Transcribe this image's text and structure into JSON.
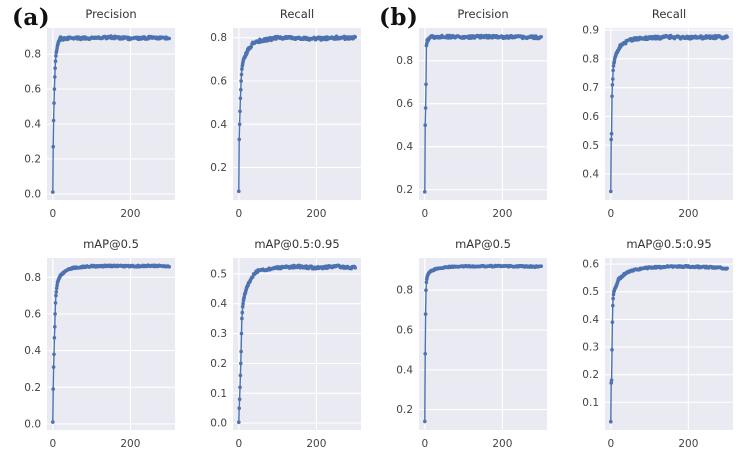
{
  "figure": {
    "kind": "training-metric-curves",
    "background": "#ffffff"
  },
  "panels": [
    {
      "label": "(a)"
    },
    {
      "label": "(b)"
    }
  ],
  "style": {
    "plot_bg": "#eaeaf2",
    "grid_color": "#ffffff",
    "series_color": "#4c72b0",
    "tick_color": "#444444",
    "title_color": "#333333"
  },
  "chart_data": [
    {
      "panel": "a",
      "type": "line",
      "markers": true,
      "title": "Precision",
      "xlabel": "",
      "ylabel": "",
      "legend": null,
      "grid": true,
      "xlim": [
        -15,
        315
      ],
      "ylim": [
        -0.035,
        0.95
      ],
      "xticks": [
        0,
        200
      ],
      "yticks": [
        0.0,
        0.2,
        0.4,
        0.6,
        0.8
      ],
      "x": [
        0,
        1,
        2,
        3,
        4,
        5,
        6,
        7,
        8,
        9,
        10,
        12,
        15,
        20,
        25,
        30,
        40,
        50,
        70,
        100,
        150,
        200,
        250,
        300
      ],
      "y": [
        0.01,
        0.27,
        0.42,
        0.52,
        0.6,
        0.67,
        0.72,
        0.76,
        0.79,
        0.81,
        0.82,
        0.85,
        0.87,
        0.895,
        0.885,
        0.89,
        0.893,
        0.895,
        0.89,
        0.893,
        0.897,
        0.89,
        0.895,
        0.89
      ],
      "noise": 0.007
    },
    {
      "panel": "a",
      "type": "line",
      "markers": true,
      "title": "Recall",
      "xlabel": "",
      "ylabel": "",
      "legend": null,
      "grid": true,
      "xlim": [
        -15,
        315
      ],
      "ylim": [
        0.05,
        0.845
      ],
      "xticks": [
        0,
        200
      ],
      "yticks": [
        0.2,
        0.4,
        0.6,
        0.8
      ],
      "x": [
        0,
        1,
        2,
        3,
        4,
        5,
        6,
        7,
        8,
        9,
        10,
        12,
        15,
        20,
        25,
        30,
        40,
        50,
        70,
        100,
        150,
        200,
        250,
        300
      ],
      "y": [
        0.09,
        0.33,
        0.4,
        0.46,
        0.52,
        0.56,
        0.6,
        0.63,
        0.655,
        0.67,
        0.68,
        0.7,
        0.71,
        0.73,
        0.75,
        0.76,
        0.78,
        0.785,
        0.79,
        0.8,
        0.8,
        0.795,
        0.8,
        0.8
      ],
      "noise": 0.007
    },
    {
      "panel": "a",
      "type": "line",
      "markers": true,
      "title": "mAP@0.5",
      "xlabel": "",
      "ylabel": "",
      "legend": null,
      "grid": true,
      "xlim": [
        -15,
        315
      ],
      "ylim": [
        -0.033,
        0.905
      ],
      "xticks": [
        0,
        200
      ],
      "yticks": [
        0.0,
        0.2,
        0.4,
        0.6,
        0.8
      ],
      "x": [
        0,
        1,
        2,
        3,
        4,
        5,
        6,
        7,
        8,
        9,
        10,
        12,
        15,
        20,
        25,
        30,
        40,
        50,
        70,
        100,
        150,
        200,
        250,
        300
      ],
      "y": [
        0.01,
        0.19,
        0.31,
        0.38,
        0.47,
        0.53,
        0.6,
        0.66,
        0.7,
        0.72,
        0.74,
        0.77,
        0.79,
        0.81,
        0.82,
        0.83,
        0.845,
        0.85,
        0.855,
        0.86,
        0.862,
        0.86,
        0.862,
        0.86
      ],
      "noise": 0.004
    },
    {
      "panel": "a",
      "type": "line",
      "markers": true,
      "title": "mAP@0.5:0.95",
      "xlabel": "",
      "ylabel": "",
      "legend": null,
      "grid": true,
      "xlim": [
        -15,
        315
      ],
      "ylim": [
        -0.023,
        0.553
      ],
      "xticks": [
        0,
        200
      ],
      "yticks": [
        0.0,
        0.1,
        0.2,
        0.3,
        0.4,
        0.5
      ],
      "x": [
        0,
        1,
        2,
        3,
        4,
        5,
        6,
        7,
        8,
        9,
        10,
        12,
        15,
        20,
        25,
        30,
        40,
        50,
        70,
        100,
        150,
        200,
        250,
        300
      ],
      "y": [
        0.003,
        0.05,
        0.08,
        0.12,
        0.16,
        0.2,
        0.24,
        0.3,
        0.35,
        0.37,
        0.39,
        0.41,
        0.43,
        0.45,
        0.465,
        0.48,
        0.5,
        0.51,
        0.515,
        0.52,
        0.525,
        0.52,
        0.525,
        0.52
      ],
      "noise": 0.004
    },
    {
      "panel": "b",
      "type": "line",
      "markers": true,
      "title": "Precision",
      "xlabel": "",
      "ylabel": "",
      "legend": null,
      "grid": true,
      "xlim": [
        -15,
        315
      ],
      "ylim": [
        0.152,
        0.952
      ],
      "xticks": [
        0,
        200
      ],
      "yticks": [
        0.2,
        0.4,
        0.6,
        0.8
      ],
      "x": [
        0,
        1,
        2,
        3,
        4,
        5,
        6,
        7,
        8,
        9,
        10,
        12,
        15,
        20,
        25,
        30,
        40,
        50,
        70,
        100,
        150,
        200,
        250,
        300
      ],
      "y": [
        0.19,
        0.5,
        0.58,
        0.69,
        0.87,
        0.88,
        0.895,
        0.89,
        0.9,
        0.895,
        0.9,
        0.905,
        0.91,
        0.915,
        0.91,
        0.908,
        0.912,
        0.91,
        0.912,
        0.91,
        0.912,
        0.91,
        0.91,
        0.908
      ],
      "noise": 0.006
    },
    {
      "panel": "b",
      "type": "line",
      "markers": true,
      "title": "Recall",
      "xlabel": "",
      "ylabel": "",
      "legend": null,
      "grid": true,
      "xlim": [
        -15,
        315
      ],
      "ylim": [
        0.31,
        0.907
      ],
      "xticks": [
        0,
        200
      ],
      "yticks": [
        0.4,
        0.5,
        0.6,
        0.7,
        0.8,
        0.9
      ],
      "x": [
        0,
        1,
        2,
        3,
        4,
        5,
        6,
        7,
        8,
        9,
        10,
        12,
        15,
        20,
        25,
        30,
        40,
        50,
        70,
        100,
        150,
        200,
        250,
        300
      ],
      "y": [
        0.34,
        0.52,
        0.54,
        0.67,
        0.71,
        0.73,
        0.76,
        0.775,
        0.785,
        0.79,
        0.8,
        0.81,
        0.82,
        0.835,
        0.845,
        0.85,
        0.858,
        0.865,
        0.87,
        0.872,
        0.876,
        0.873,
        0.875,
        0.875
      ],
      "noise": 0.005
    },
    {
      "panel": "b",
      "type": "line",
      "markers": true,
      "title": "mAP@0.5",
      "xlabel": "",
      "ylabel": "",
      "legend": null,
      "grid": true,
      "xlim": [
        -15,
        315
      ],
      "ylim": [
        0.097,
        0.962
      ],
      "xticks": [
        0,
        200
      ],
      "yticks": [
        0.2,
        0.4,
        0.6,
        0.8
      ],
      "x": [
        0,
        1,
        2,
        3,
        4,
        5,
        6,
        7,
        8,
        9,
        10,
        12,
        15,
        20,
        25,
        30,
        40,
        50,
        70,
        100,
        150,
        200,
        250,
        300
      ],
      "y": [
        0.14,
        0.48,
        0.68,
        0.8,
        0.84,
        0.855,
        0.865,
        0.872,
        0.878,
        0.882,
        0.886,
        0.89,
        0.895,
        0.9,
        0.905,
        0.908,
        0.912,
        0.915,
        0.918,
        0.92,
        0.921,
        0.921,
        0.92,
        0.918
      ],
      "noise": 0.003
    },
    {
      "panel": "b",
      "type": "line",
      "markers": true,
      "title": "mAP@0.5:0.95",
      "xlabel": "",
      "ylabel": "",
      "legend": null,
      "grid": true,
      "xlim": [
        -15,
        315
      ],
      "ylim": [
        0.0,
        0.622
      ],
      "xticks": [
        0,
        200
      ],
      "yticks": [
        0.1,
        0.2,
        0.3,
        0.4,
        0.5,
        0.6
      ],
      "x": [
        0,
        1,
        2,
        3,
        4,
        5,
        6,
        7,
        8,
        9,
        10,
        12,
        15,
        20,
        25,
        30,
        40,
        50,
        70,
        100,
        150,
        200,
        250,
        300
      ],
      "y": [
        0.03,
        0.17,
        0.18,
        0.29,
        0.39,
        0.45,
        0.475,
        0.49,
        0.5,
        0.505,
        0.51,
        0.515,
        0.525,
        0.545,
        0.55,
        0.558,
        0.568,
        0.575,
        0.582,
        0.587,
        0.591,
        0.591,
        0.589,
        0.585
      ],
      "noise": 0.003
    }
  ]
}
